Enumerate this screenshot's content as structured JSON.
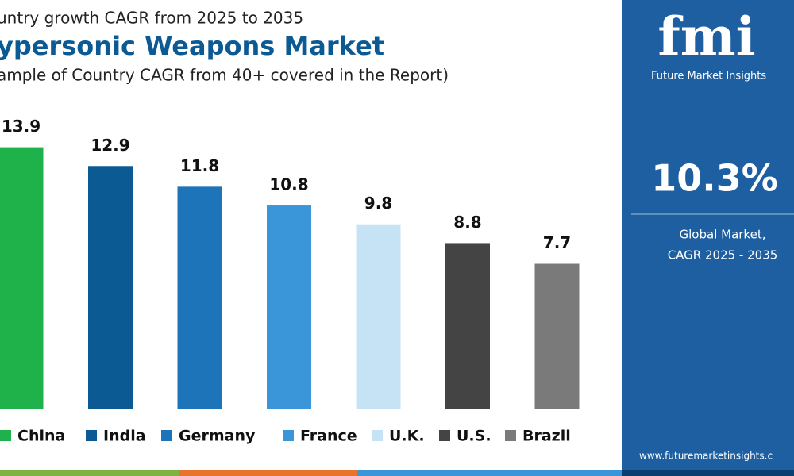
{
  "chart_data": {
    "type": "bar",
    "supertitle": "untry growth CAGR from 2025 to 2035",
    "title": "ypersonic Weapons Market",
    "subtitle": "ample of Country CAGR from 40+ covered in the Report)",
    "categories": [
      "China",
      "India",
      "Germany",
      "France",
      "U.K.",
      "U.S.",
      "Brazil"
    ],
    "values": [
      13.9,
      12.9,
      11.8,
      10.8,
      9.8,
      8.8,
      7.7
    ],
    "colors": [
      "#1fb24a",
      "#0b5a94",
      "#1e74b8",
      "#3a96d8",
      "#c5e3f5",
      "#444444",
      "#7a7a7a"
    ]
  },
  "panel": {
    "brand": "fmi",
    "brand_name": "Future Market Insights",
    "stat": "10.3%",
    "stat_label": [
      "Global Market,",
      "CAGR 2025 - 2035"
    ],
    "url": "www.futuremarketinsights.c"
  }
}
